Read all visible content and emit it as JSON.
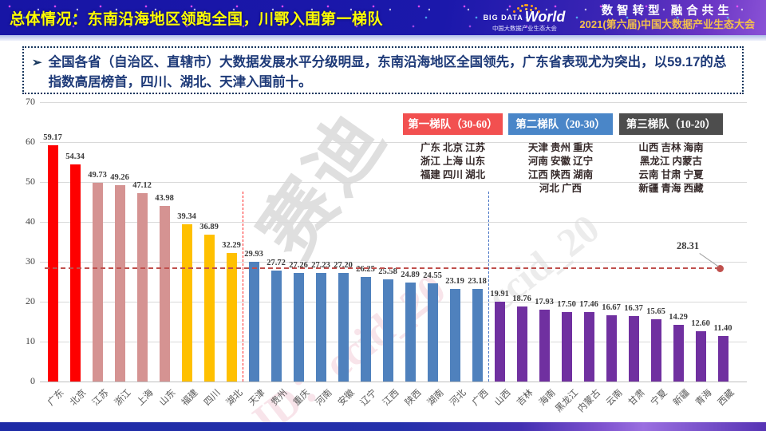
{
  "header": {
    "title": "总体情况：东南沿海地区领跑全国，川鄂入围第一梯队",
    "logo": {
      "big": "BIG DATA",
      "world": "World",
      "sub": "中国大数据产业生态大会"
    },
    "slogan_line1": "数智转型 融合共生",
    "slogan_line2": "2021(第六届)中国大数据产业生态大会"
  },
  "summary": {
    "bullet": "➢",
    "text": "全国各省（自治区、直辖市）大数据发展水平分级明显，东南沿海地区全国领先，广东省表现尤为突出，以59.17的总指数高居榜首，四川、湖北、天津入围前十。"
  },
  "legend": {
    "tiers": [
      {
        "label": "第一梯队（30-60）",
        "color": "#f25050",
        "provinces": [
          "广东 北京 江苏",
          "浙江 上海 山东",
          "福建 四川 湖北"
        ]
      },
      {
        "label": "第二梯队（20-30）",
        "color": "#4a86c8",
        "provinces": [
          "天津 贵州 重庆",
          "河南 安徽 辽宁",
          "江西 陕西 湖南",
          "河北 广西"
        ]
      },
      {
        "label": "第三梯队（10-20）",
        "color": "#4d4d4d",
        "provinces": [
          "山西 吉林 海南",
          "黑龙江 内蒙古",
          "云南 甘肃 宁夏",
          "新疆 青海 西藏"
        ]
      }
    ]
  },
  "chart_data": {
    "type": "bar",
    "categories": [
      "广东",
      "北京",
      "江苏",
      "浙江",
      "上海",
      "山东",
      "福建",
      "四川",
      "湖北",
      "天津",
      "贵州",
      "重庆",
      "河南",
      "安徽",
      "辽宁",
      "江西",
      "陕西",
      "湖南",
      "河北",
      "广西",
      "山西",
      "吉林",
      "海南",
      "黑龙江",
      "内蒙古",
      "云南",
      "甘肃",
      "宁夏",
      "新疆",
      "青海",
      "西藏"
    ],
    "values": [
      59.17,
      54.34,
      49.73,
      49.26,
      47.12,
      43.98,
      39.34,
      36.89,
      32.29,
      29.93,
      27.72,
      27.26,
      27.23,
      27.2,
      26.25,
      25.58,
      24.89,
      24.55,
      23.19,
      23.18,
      19.91,
      18.76,
      17.93,
      17.5,
      17.46,
      16.67,
      16.37,
      15.65,
      14.29,
      12.6,
      11.4
    ],
    "title": "",
    "xlabel": "",
    "ylabel": "",
    "ylim": [
      0,
      70
    ],
    "yticks": [
      0,
      10,
      20,
      30,
      40,
      50,
      60,
      70
    ],
    "grid": true,
    "legend_position": "top-right",
    "bar_color_groups": [
      {
        "count": 2,
        "color": "#fe0000"
      },
      {
        "count": 4,
        "color": "#d59392"
      },
      {
        "count": 3,
        "color": "#ffc000"
      },
      {
        "count": 11,
        "color": "#4f81bd"
      },
      {
        "count": 11,
        "color": "#7030a0"
      }
    ],
    "reference_line": {
      "value": 28.31,
      "label": "28.31",
      "color": "#c0504d"
    },
    "tier_separators": [
      {
        "after_index": 8,
        "color": "#ff2222"
      },
      {
        "after_index": 19,
        "color": "#4472c4"
      }
    ]
  },
  "watermarks": {
    "wm1": "赛迪",
    "wm2": "ID：ccid_20",
    "wm3": "ccid_20"
  }
}
